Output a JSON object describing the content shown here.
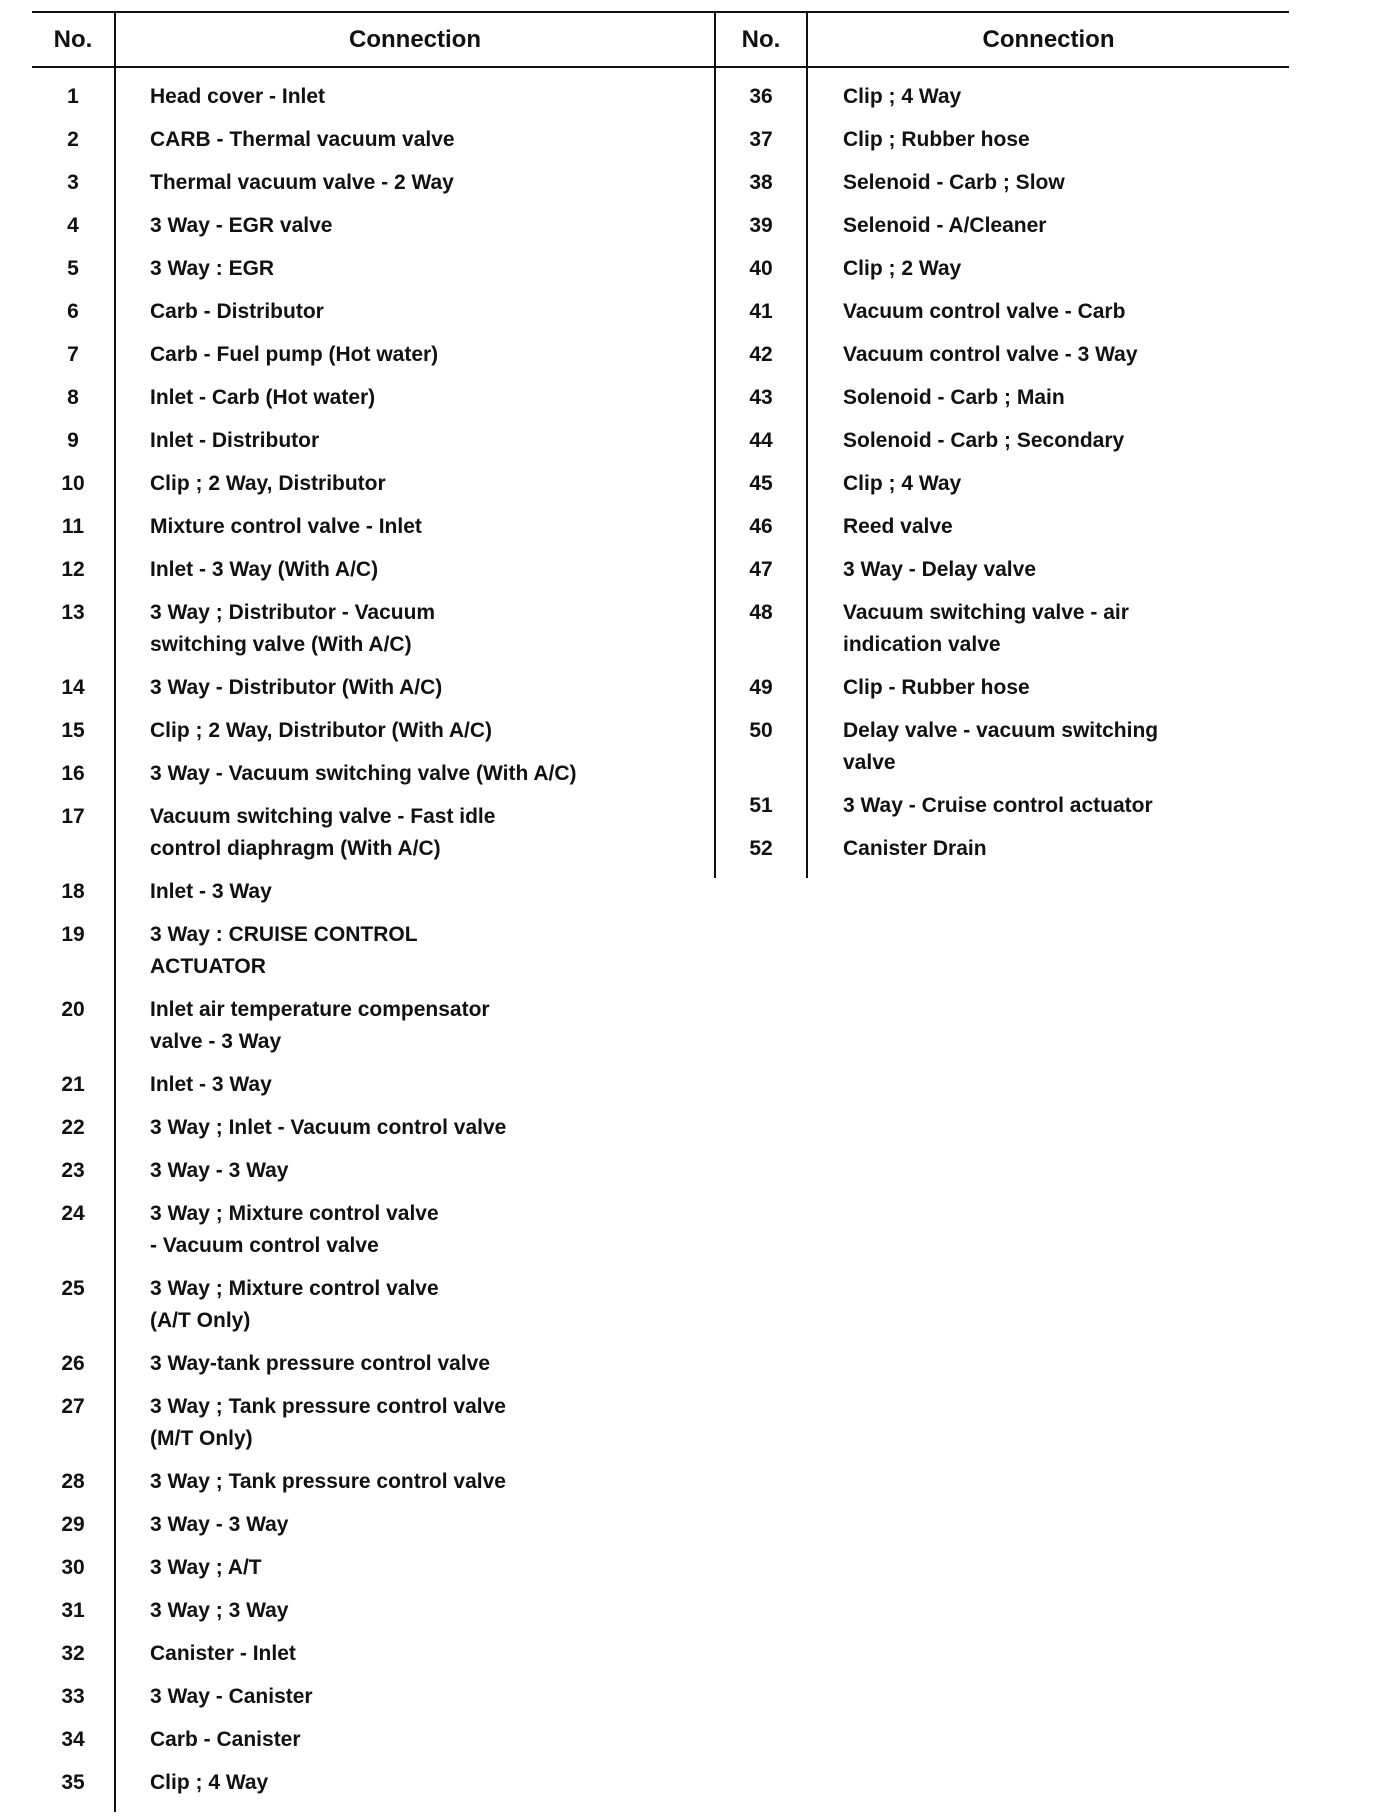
{
  "headers": {
    "no": "No.",
    "connection": "Connection"
  },
  "left_rows": [
    {
      "no": "1",
      "connection": "Head cover - Inlet"
    },
    {
      "no": "2",
      "connection": "CARB - Thermal vacuum valve"
    },
    {
      "no": "3",
      "connection": "Thermal vacuum valve - 2 Way"
    },
    {
      "no": "4",
      "connection": "3 Way - EGR valve"
    },
    {
      "no": "5",
      "connection": "3 Way : EGR"
    },
    {
      "no": "6",
      "connection": "Carb - Distributor"
    },
    {
      "no": "7",
      "connection": "Carb - Fuel pump (Hot water)"
    },
    {
      "no": "8",
      "connection": "Inlet - Carb (Hot water)"
    },
    {
      "no": "9",
      "connection": "Inlet - Distributor"
    },
    {
      "no": "10",
      "connection": "Clip ; 2 Way, Distributor"
    },
    {
      "no": "11",
      "connection": "Mixture control valve - Inlet"
    },
    {
      "no": "12",
      "connection": "Inlet - 3 Way (With A/C)"
    },
    {
      "no": "13",
      "connection": "3 Way ; Distributor - Vacuum\nswitching valve (With A/C)"
    },
    {
      "no": "14",
      "connection": "3 Way - Distributor (With A/C)"
    },
    {
      "no": "15",
      "connection": "Clip ; 2 Way, Distributor (With A/C)"
    },
    {
      "no": "16",
      "connection": "3 Way - Vacuum switching valve (With A/C)"
    },
    {
      "no": "17",
      "connection": "Vacuum switching valve - Fast idle\ncontrol diaphragm (With A/C)"
    },
    {
      "no": "18",
      "connection": "Inlet - 3 Way"
    },
    {
      "no": "19",
      "connection": "3 Way : CRUISE CONTROL\nACTUATOR"
    },
    {
      "no": "20",
      "connection": "Inlet air temperature compensator\nvalve - 3 Way"
    },
    {
      "no": "21",
      "connection": "Inlet - 3 Way"
    },
    {
      "no": "22",
      "connection": "3 Way ; Inlet - Vacuum control valve"
    },
    {
      "no": "23",
      "connection": "3 Way - 3 Way"
    },
    {
      "no": "24",
      "connection": "3 Way ; Mixture control valve\n- Vacuum control valve"
    },
    {
      "no": "25",
      "connection": "3 Way ; Mixture control valve\n(A/T Only)"
    },
    {
      "no": "26",
      "connection": "3 Way-tank pressure control valve"
    },
    {
      "no": "27",
      "connection": "3 Way ; Tank pressure control valve\n(M/T Only)"
    },
    {
      "no": "28",
      "connection": "3 Way ; Tank pressure control valve"
    },
    {
      "no": "29",
      "connection": "3 Way - 3 Way"
    },
    {
      "no": "30",
      "connection": "3 Way ; A/T"
    },
    {
      "no": "31",
      "connection": "3 Way ; 3 Way"
    },
    {
      "no": "32",
      "connection": "Canister - Inlet"
    },
    {
      "no": "33",
      "connection": "3 Way - Canister"
    },
    {
      "no": "34",
      "connection": "Carb - Canister"
    },
    {
      "no": "35",
      "connection": "Clip ; 4 Way"
    }
  ],
  "right_rows": [
    {
      "no": "36",
      "connection": "Clip ; 4 Way"
    },
    {
      "no": "37",
      "connection": "Clip ; Rubber hose"
    },
    {
      "no": "38",
      "connection": "Selenoid - Carb ; Slow"
    },
    {
      "no": "39",
      "connection": "Selenoid - A/Cleaner"
    },
    {
      "no": "40",
      "connection": "Clip ; 2 Way"
    },
    {
      "no": "41",
      "connection": "Vacuum control valve - Carb"
    },
    {
      "no": "42",
      "connection": "Vacuum control valve - 3 Way"
    },
    {
      "no": "43",
      "connection": "Solenoid - Carb ; Main"
    },
    {
      "no": "44",
      "connection": "Solenoid - Carb ; Secondary"
    },
    {
      "no": "45",
      "connection": "Clip ; 4 Way"
    },
    {
      "no": "46",
      "connection": "Reed valve"
    },
    {
      "no": "47",
      "connection": "3 Way - Delay valve"
    },
    {
      "no": "48",
      "connection": "Vacuum switching valve - air\nindication valve"
    },
    {
      "no": "49",
      "connection": "Clip - Rubber hose"
    },
    {
      "no": "50",
      "connection": "Delay valve - vacuum switching\nvalve"
    },
    {
      "no": "51",
      "connection": "3 Way - Cruise control actuator"
    },
    {
      "no": "52",
      "connection": "Canister Drain"
    }
  ]
}
